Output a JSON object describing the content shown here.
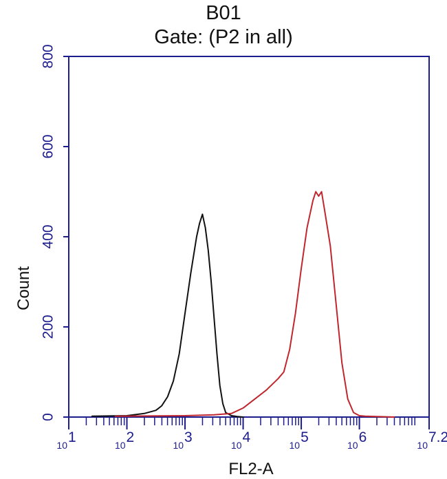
{
  "chart_data": {
    "type": "line",
    "title": "B01",
    "subtitle": "Gate: (P2 in all)",
    "xlabel": "FL2-A",
    "ylabel": "Count",
    "xscale": "log",
    "xlim": [
      1,
      7.2
    ],
    "ylim": [
      0,
      800
    ],
    "x_ticks": [
      1,
      2,
      3,
      4,
      5,
      6,
      7.2
    ],
    "x_tick_labels": [
      "1",
      "2",
      "3",
      "4",
      "5",
      "6",
      "7.2"
    ],
    "x_tick_base": "10",
    "y_ticks": [
      0,
      200,
      400,
      600,
      800
    ],
    "y_tick_labels": [
      "0",
      "200",
      "400",
      "600",
      "800"
    ],
    "axis_color": "#1c1c8c",
    "series": [
      {
        "color": "#111111",
        "x": [
          1.4,
          2.0,
          2.3,
          2.5,
          2.6,
          2.7,
          2.8,
          2.9,
          3.0,
          3.1,
          3.2,
          3.25,
          3.3,
          3.35,
          3.4,
          3.45,
          3.5,
          3.55,
          3.6,
          3.65,
          3.7,
          3.8,
          3.9,
          4.0
        ],
        "y": [
          2,
          3,
          8,
          15,
          25,
          45,
          80,
          140,
          230,
          320,
          400,
          430,
          450,
          420,
          370,
          300,
          220,
          140,
          70,
          30,
          10,
          3,
          1,
          0
        ]
      },
      {
        "color": "#c0262d",
        "x": [
          1.8,
          3.0,
          3.5,
          3.8,
          4.0,
          4.2,
          4.4,
          4.6,
          4.7,
          4.8,
          4.9,
          5.0,
          5.1,
          5.2,
          5.25,
          5.3,
          5.35,
          5.4,
          5.5,
          5.6,
          5.7,
          5.8,
          5.9,
          6.0,
          6.1,
          6.3,
          6.6
        ],
        "y": [
          2,
          3,
          5,
          8,
          20,
          40,
          60,
          85,
          100,
          150,
          230,
          330,
          420,
          480,
          500,
          490,
          500,
          460,
          380,
          250,
          120,
          40,
          10,
          3,
          2,
          1,
          0
        ]
      }
    ]
  }
}
